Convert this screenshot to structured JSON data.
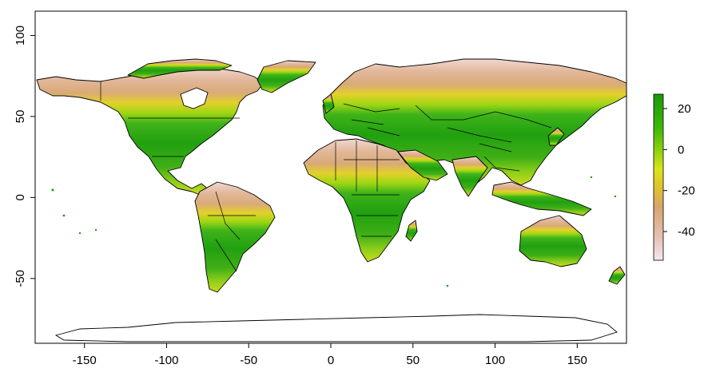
{
  "chart_data": {
    "type": "heatmap",
    "title": "",
    "xlabel": "",
    "ylabel": "",
    "xlim": [
      -180,
      180
    ],
    "ylim": [
      -90,
      115
    ],
    "x_ticks": [
      "-150",
      "-100",
      "-50",
      "0",
      "50",
      "100",
      "150"
    ],
    "y_ticks": [
      "-50",
      "0",
      "50",
      "100"
    ],
    "legend": {
      "position": "right",
      "range": [
        -54,
        27
      ],
      "ticks": [
        "20",
        "0",
        "-20",
        "-40"
      ],
      "colors": [
        "#f2e6ee",
        "#e3b5a6",
        "#d9a46e",
        "#e6d31a",
        "#d7e51a",
        "#6fcf0a",
        "#32b50a",
        "#1d9b0a"
      ]
    },
    "colors": {
      "warm": "#1f9f0f",
      "temperate": "#6cc62a",
      "cool": "#e0da22",
      "cold": "#d9a574",
      "frigid": "#ebc5bd",
      "ice": "#ffffff"
    }
  }
}
